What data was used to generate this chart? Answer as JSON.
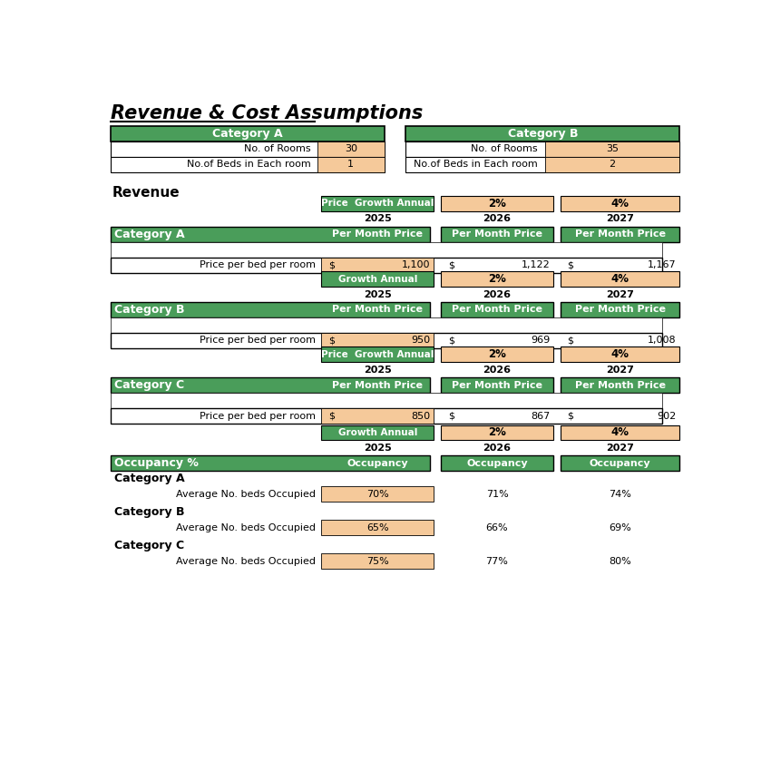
{
  "title": "Revenue & Cost Assumptions",
  "green": "#4a9d5a",
  "peach": "#f5c99a",
  "white": "#ffffff",
  "black": "#000000",
  "cat_a_rooms": 30,
  "cat_a_beds": 1,
  "cat_b_rooms": 35,
  "cat_b_beds": 2,
  "cat_a_prices": [
    1100,
    1122,
    1167
  ],
  "cat_b_prices": [
    950,
    969,
    1008
  ],
  "cat_c_prices": [
    850,
    867,
    902
  ],
  "years": [
    "2025",
    "2026",
    "2027"
  ],
  "growth_a_label": "Price  Growth Annual",
  "growth_b_label": "Growth Annual",
  "growth_c_label": "Price  Growth Annual",
  "growth_occ_label": "Growth Annual",
  "growth_rates": [
    "2%",
    "4%"
  ],
  "occ_cat_a": [
    "70%",
    "71%",
    "74%"
  ],
  "occ_cat_b": [
    "65%",
    "66%",
    "69%"
  ],
  "occ_cat_c": [
    "75%",
    "77%",
    "80%"
  ]
}
